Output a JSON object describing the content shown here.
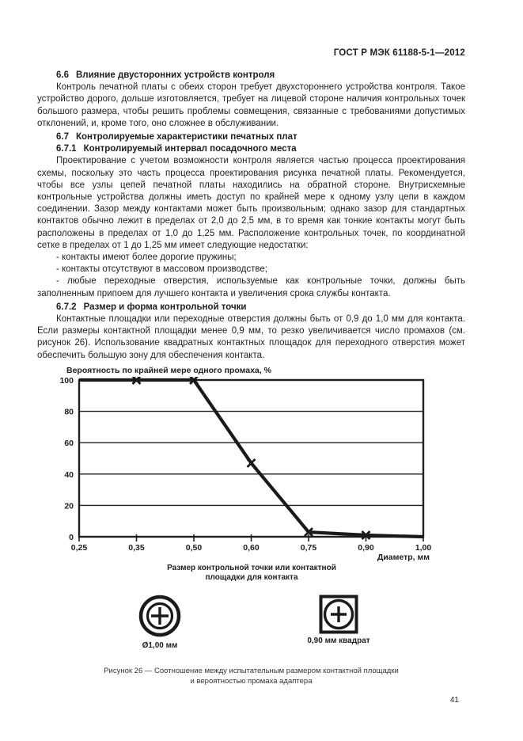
{
  "header": {
    "doc_code": "ГОСТ Р МЭК 61188-5-1—2012"
  },
  "content": {
    "s66": {
      "num": "6.6",
      "title": "Влияние двусторонних устройств контроля"
    },
    "s66_para": "Контроль печатной платы с обеих сторон требует двухстороннего устройства контроля. Такое устройство дорого, дольше изготовляется, требует на лицевой стороне наличия контрольных точек большого размера, чтобы решить проблемы совмещения, связанные с требованиями допустимых отклонений, и, кроме того, оно сложнее в обслуживании.",
    "s67": {
      "num": "6.7",
      "title": "Контролируемые характеристики печатных плат"
    },
    "s671": {
      "num": "6.7.1",
      "title": "Контролируемый интервал посадочного места"
    },
    "s671_para": "Проектирование с учетом возможности контроля является частью процесса проектирования схемы, поскольку это часть процесса проектирования рисунка печатной платы. Рекомендуется, чтобы все узлы цепей печатной платы находились на обратной стороне. Внутрисхемные контрольные устройства должны иметь доступ по крайней мере к одному узлу цепи в каждом соединении. Зазор между контактами может быть произвольным; однако зазор для стандартных контактов обычно лежит в пределах от 2,0 до 2,5 мм, в то время как тонкие контакты могут быть расположены в пределах от 1,0 до 1,25 мм. Расположение контрольных точек, по координатной сетке в пределах от 1 до 1,25 мм имеет следующие недостатки:",
    "s671_list": [
      "- контакты имеют более дорогие пружины;",
      "- контакты отсутствуют в массовом производстве;",
      "- любые переходные отверстия, используемые как контрольные точки, должны быть заполненным припоем для лучшего контакта и увеличения срока службы контакта."
    ],
    "s672": {
      "num": "6.7.2",
      "title": "Размер и форма контрольной точки"
    },
    "s672_para": "Контактные площадки или переходные отверстия должны быть от 0,9 до 1,0 мм для контакта. Если размеры контактной площадки менее 0,9 мм, то резко увеличивается число промахов (см. рисунок 26). Использование квадратных контактных площадок для переходного отверстия может обеспечить большую зону для обеспечения контакта."
  },
  "chart_data": {
    "type": "line",
    "title": "Вероятность по крайней мере одного промаха, %",
    "xlabel": "Диаметр, мм",
    "x_tick_labels": [
      "0,25",
      "0,35",
      "0,50",
      "0,60",
      "0,75",
      "0,90",
      "1,00"
    ],
    "x_values_mm": [
      0.25,
      0.35,
      0.5,
      0.6,
      0.75,
      0.9,
      1.0
    ],
    "y_ticks": [
      0,
      20,
      40,
      60,
      80,
      100
    ],
    "y_gridlines": [
      20,
      40,
      60,
      80
    ],
    "ylim": [
      0,
      100
    ],
    "x_axis_spacing": "even",
    "grid": "horizontal",
    "series": [
      {
        "name": "Вероятность по крайней мере одного промаха",
        "values": [
          100,
          100,
          100,
          47,
          3,
          1,
          0
        ],
        "marker": "x",
        "marker_indices": [
          1,
          2,
          3,
          4,
          5
        ],
        "color": "#1a1a1a"
      }
    ]
  },
  "figure": {
    "axis_caption_lines": [
      "Размер контрольной точки или контактной",
      "площадки для контакта"
    ],
    "round_pad_label": "Ø1,00 мм",
    "square_pad_label": "0,90 мм квадрат",
    "caption_lines": [
      "Рисунок 26 — Соотношение между испытательным размером контактной площадки",
      "и вероятностью промаха адаптера"
    ]
  },
  "footer": {
    "page_number": "41"
  },
  "colors": {
    "ink": "#1f1f1f",
    "chart_line": "#1a1a1a"
  }
}
